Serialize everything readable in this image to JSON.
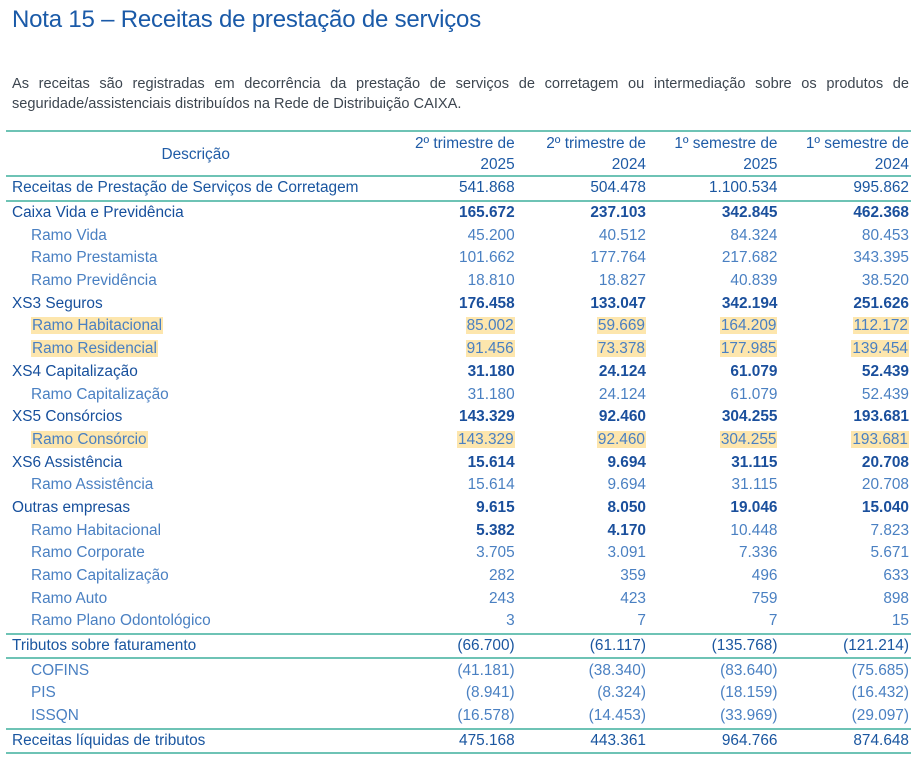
{
  "title": "Nota 15 – Receitas de prestação de serviços",
  "intro": "As receitas são registradas em decorrência da prestação de serviços de corretagem ou intermediação sobre os produtos de seguridade/assistenciais distribuídos na Rede de Distribuição CAIXA.",
  "table": {
    "headers": [
      "Descrição",
      "2º trimestre de 2025",
      "2º trimestre de 2024",
      "1º semestre de 2025",
      "1º semestre de 2024"
    ],
    "highlight_color": "#fde6ad",
    "rows": [
      {
        "label": "Receitas de Prestação de Serviços de Corretagem",
        "level": 0,
        "values": [
          "541.868",
          "504.478",
          "1.100.534",
          "995.862"
        ],
        "lines": "both"
      },
      {
        "label": "Caixa Vida e Previdência",
        "level": 1,
        "values": [
          "165.672",
          "237.103",
          "342.845",
          "462.368"
        ]
      },
      {
        "label": "Ramo Vida",
        "level": 2,
        "values": [
          "45.200",
          "40.512",
          "84.324",
          "80.453"
        ]
      },
      {
        "label": "Ramo Prestamista",
        "level": 2,
        "values": [
          "101.662",
          "177.764",
          "217.682",
          "343.395"
        ]
      },
      {
        "label": "Ramo Previdência",
        "level": 2,
        "values": [
          "18.810",
          "18.827",
          "40.839",
          "38.520"
        ]
      },
      {
        "label": "XS3 Seguros",
        "level": 1,
        "values": [
          "176.458",
          "133.047",
          "342.194",
          "251.626"
        ]
      },
      {
        "label": "Ramo Habitacional",
        "level": 2,
        "values": [
          "85.002",
          "59.669",
          "164.209",
          "112.172"
        ],
        "highlight": true
      },
      {
        "label": "Ramo Residencial",
        "level": 2,
        "values": [
          "91.456",
          "73.378",
          "177.985",
          "139.454"
        ],
        "highlight": true
      },
      {
        "label": "XS4 Capitalização",
        "level": 1,
        "values": [
          "31.180",
          "24.124",
          "61.079",
          "52.439"
        ]
      },
      {
        "label": "Ramo Capitalização",
        "level": 2,
        "values": [
          "31.180",
          "24.124",
          "61.079",
          "52.439"
        ]
      },
      {
        "label": "XS5 Consórcios",
        "level": 1,
        "values": [
          "143.329",
          "92.460",
          "304.255",
          "193.681"
        ]
      },
      {
        "label": "Ramo Consórcio",
        "level": 2,
        "values": [
          "143.329",
          "92.460",
          "304.255",
          "193.681"
        ],
        "highlight": true
      },
      {
        "label": "XS6 Assistência",
        "level": 1,
        "values": [
          "15.614",
          "9.694",
          "31.115",
          "20.708"
        ]
      },
      {
        "label": "Ramo Assistência",
        "level": 2,
        "values": [
          "15.614",
          "9.694",
          "31.115",
          "20.708"
        ]
      },
      {
        "label": "Outras empresas",
        "level": 1,
        "values": [
          "9.615",
          "8.050",
          "19.046",
          "15.040"
        ]
      },
      {
        "label": "Ramo Habitacional",
        "level": 2,
        "values": [
          "5.382",
          "4.170",
          "10.448",
          "7.823"
        ],
        "bold_values": [
          0,
          1
        ]
      },
      {
        "label": "Ramo Corporate",
        "level": 2,
        "values": [
          "3.705",
          "3.091",
          "7.336",
          "5.671"
        ]
      },
      {
        "label": "Ramo Capitalização",
        "level": 2,
        "values": [
          "282",
          "359",
          "496",
          "633"
        ]
      },
      {
        "label": "Ramo Auto",
        "level": 2,
        "values": [
          "243",
          "423",
          "759",
          "898"
        ]
      },
      {
        "label": "Ramo Plano Odontológico",
        "level": 2,
        "values": [
          "3",
          "7",
          "7",
          "15"
        ]
      },
      {
        "label": "Tributos sobre faturamento",
        "level": 0,
        "values": [
          "(66.700)",
          "(61.117)",
          "(135.768)",
          "(121.214)"
        ],
        "lines": "both"
      },
      {
        "label": "COFINS",
        "level": 2,
        "values": [
          "(41.181)",
          "(38.340)",
          "(83.640)",
          "(75.685)"
        ]
      },
      {
        "label": "PIS",
        "level": 2,
        "values": [
          "(8.941)",
          "(8.324)",
          "(18.159)",
          "(16.432)"
        ]
      },
      {
        "label": "ISSQN",
        "level": 2,
        "values": [
          "(16.578)",
          "(14.453)",
          "(33.969)",
          "(29.097)"
        ]
      },
      {
        "label": "Receitas líquidas de tributos",
        "level": 0,
        "values": [
          "475.168",
          "443.361",
          "964.766",
          "874.648"
        ],
        "lines": "both"
      }
    ]
  }
}
